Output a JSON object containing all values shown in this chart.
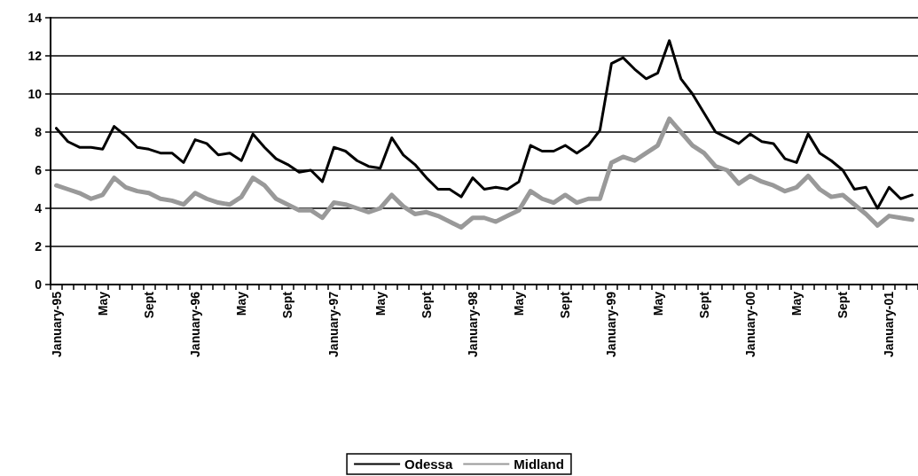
{
  "chart_data": {
    "type": "line",
    "categories": [
      "January-95",
      null,
      null,
      null,
      "May",
      null,
      null,
      null,
      "Sept",
      null,
      null,
      null,
      "January-96",
      null,
      null,
      null,
      "May",
      null,
      null,
      null,
      "Sept",
      null,
      null,
      null,
      "January-97",
      null,
      null,
      null,
      "May",
      null,
      null,
      null,
      "Sept",
      null,
      null,
      null,
      "January-98",
      null,
      null,
      null,
      "May",
      null,
      null,
      null,
      "Sept",
      null,
      null,
      null,
      "January-99",
      null,
      null,
      null,
      "May",
      null,
      null,
      null,
      "Sept",
      null,
      null,
      null,
      "January-00",
      null,
      null,
      null,
      "May",
      null,
      null,
      null,
      "Sept",
      null,
      null,
      null,
      "January-01",
      null,
      null
    ],
    "series": [
      {
        "name": "Odessa",
        "color": "#000000",
        "values": [
          8.2,
          7.5,
          7.2,
          7.2,
          7.1,
          8.3,
          7.8,
          7.2,
          7.1,
          6.9,
          6.9,
          6.4,
          7.6,
          7.4,
          6.8,
          6.9,
          6.5,
          7.9,
          7.2,
          6.6,
          6.3,
          5.9,
          6.0,
          5.4,
          7.2,
          7.0,
          6.5,
          6.2,
          6.1,
          7.7,
          6.8,
          6.3,
          5.6,
          5.0,
          5.0,
          4.6,
          5.6,
          5.0,
          5.1,
          5.0,
          5.4,
          7.3,
          7.0,
          7.0,
          7.3,
          6.9,
          7.3,
          8.1,
          11.6,
          11.9,
          11.3,
          10.8,
          11.1,
          12.8,
          10.8,
          10.0,
          9.0,
          8.0,
          7.7,
          7.4,
          7.9,
          7.5,
          7.4,
          6.6,
          6.4,
          7.9,
          6.9,
          6.5,
          6.0,
          5.0,
          5.1,
          4.0,
          5.1,
          4.5,
          4.7
        ]
      },
      {
        "name": "Midland",
        "color": "#999999",
        "values": [
          5.2,
          5.0,
          4.8,
          4.5,
          4.7,
          5.6,
          5.1,
          4.9,
          4.8,
          4.5,
          4.4,
          4.2,
          4.8,
          4.5,
          4.3,
          4.2,
          4.6,
          5.6,
          5.2,
          4.5,
          4.2,
          3.9,
          3.9,
          3.5,
          4.3,
          4.2,
          4.0,
          3.8,
          4.0,
          4.7,
          4.1,
          3.7,
          3.8,
          3.6,
          3.3,
          3.0,
          3.5,
          3.5,
          3.3,
          3.6,
          3.9,
          4.9,
          4.5,
          4.3,
          4.7,
          4.3,
          4.5,
          4.5,
          6.4,
          6.7,
          6.5,
          6.9,
          7.3,
          8.7,
          8.0,
          7.3,
          6.9,
          6.2,
          6.0,
          5.3,
          5.7,
          5.4,
          5.2,
          4.9,
          5.1,
          5.7,
          5.0,
          4.6,
          4.7,
          4.2,
          3.7,
          3.1,
          3.6,
          3.5,
          3.4
        ]
      }
    ],
    "ylim": [
      0,
      14
    ],
    "yticks": [
      0,
      2,
      4,
      6,
      8,
      10,
      12,
      14
    ],
    "grid": "y",
    "legend": "bottom",
    "marker": "none",
    "line_style": "solid"
  }
}
